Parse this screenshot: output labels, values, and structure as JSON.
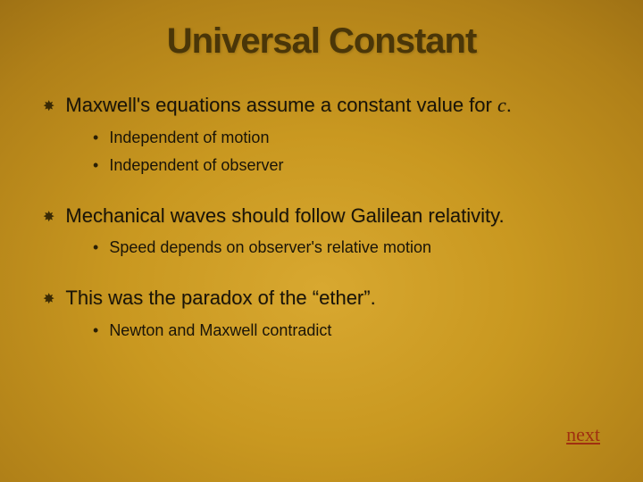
{
  "slide": {
    "background": {
      "gradient_center_color": "#d8a830",
      "gradient_mid_color": "#b08018",
      "gradient_edge_color": "#6b4a08"
    },
    "title": {
      "text": "Universal Constant",
      "fontsize": 40,
      "color": "#4a3608",
      "font_family": "Arial Narrow"
    },
    "bullets": [
      {
        "text_prefix": "Maxwell's equations assume a constant value for ",
        "italic_var": "c",
        "text_suffix": ".",
        "sub": [
          {
            "text": "Independent of motion"
          },
          {
            "text": "Independent of observer"
          }
        ]
      },
      {
        "text_prefix": "Mechanical waves should follow Galilean relativity.",
        "italic_var": "",
        "text_suffix": "",
        "sub": [
          {
            "text": "Speed depends on observer's relative motion"
          }
        ]
      },
      {
        "text_prefix": "This was the paradox of the “ether”.",
        "italic_var": "",
        "text_suffix": "",
        "sub": [
          {
            "text": "Newton and Maxwell contradict"
          }
        ]
      }
    ],
    "main_bullet_glyph": "✸",
    "sub_bullet_glyph": "•",
    "main_fontsize": 22,
    "sub_fontsize": 18,
    "main_text_color": "#1a1408",
    "sub_text_color": "#1a1408",
    "link": {
      "text": "next",
      "color": "#a03010",
      "fontsize": 22
    }
  }
}
